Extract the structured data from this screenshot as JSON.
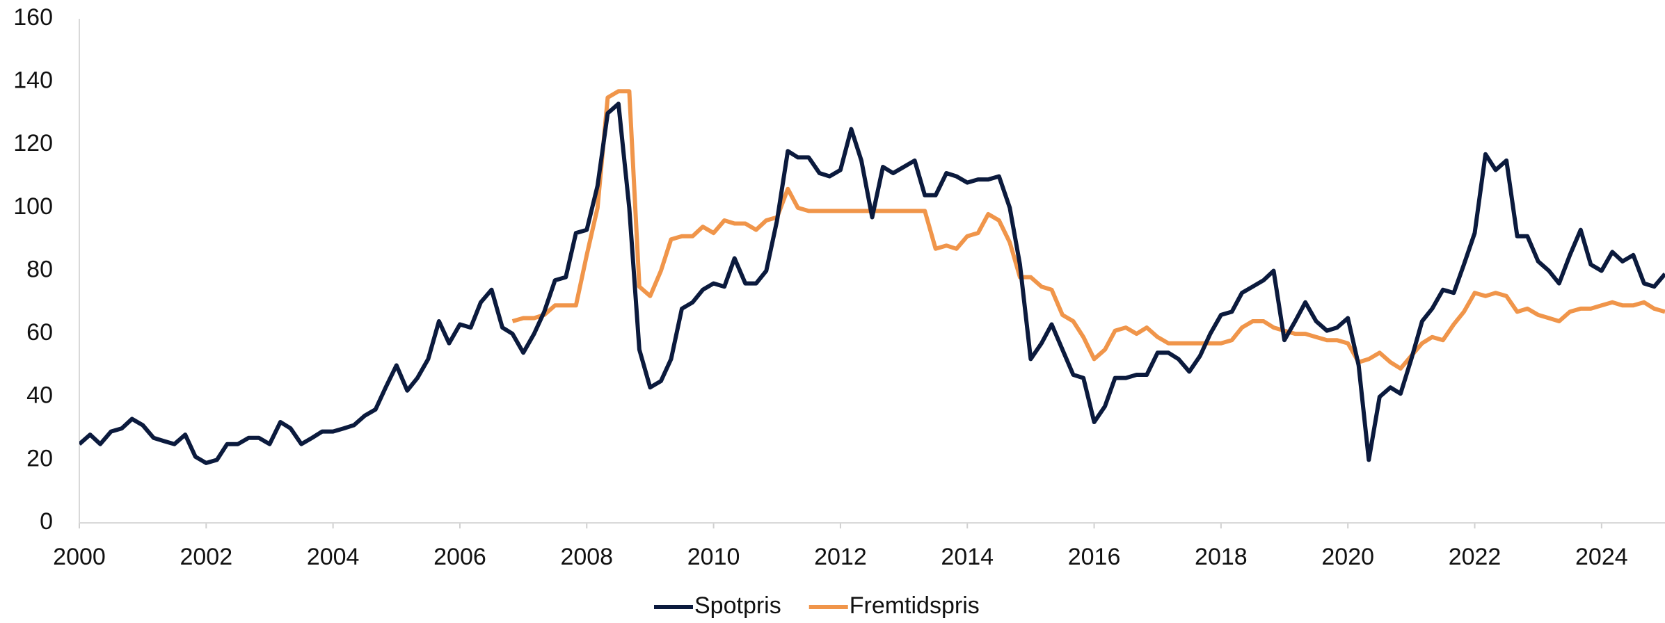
{
  "chart_data": {
    "type": "line",
    "xlim": [
      2000,
      2025
    ],
    "xticks": [
      2000,
      2002,
      2004,
      2006,
      2008,
      2010,
      2012,
      2014,
      2016,
      2018,
      2020,
      2022,
      2024
    ],
    "ylim": [
      0,
      160
    ],
    "yticks": [
      0,
      20,
      40,
      60,
      80,
      100,
      120,
      140,
      160
    ],
    "grid": false,
    "legend": "bottom",
    "series": [
      {
        "name": "Spotpris",
        "color": "#0b1a3d",
        "x": [
          2000,
          2000.17,
          2000.33,
          2000.5,
          2000.67,
          2000.83,
          2001,
          2001.17,
          2001.33,
          2001.5,
          2001.67,
          2001.83,
          2002,
          2002.17,
          2002.33,
          2002.5,
          2002.67,
          2002.83,
          2003,
          2003.17,
          2003.33,
          2003.5,
          2003.67,
          2003.83,
          2004,
          2004.17,
          2004.33,
          2004.5,
          2004.67,
          2004.83,
          2005,
          2005.17,
          2005.33,
          2005.5,
          2005.67,
          2005.83,
          2006,
          2006.17,
          2006.33,
          2006.5,
          2006.67,
          2006.83,
          2007,
          2007.17,
          2007.33,
          2007.5,
          2007.67,
          2007.83,
          2008,
          2008.17,
          2008.33,
          2008.5,
          2008.67,
          2008.83,
          2009,
          2009.17,
          2009.33,
          2009.5,
          2009.67,
          2009.83,
          2010,
          2010.17,
          2010.33,
          2010.5,
          2010.67,
          2010.83,
          2011,
          2011.17,
          2011.33,
          2011.5,
          2011.67,
          2011.83,
          2012,
          2012.17,
          2012.33,
          2012.5,
          2012.67,
          2012.83,
          2013,
          2013.17,
          2013.33,
          2013.5,
          2013.67,
          2013.83,
          2014,
          2014.17,
          2014.33,
          2014.5,
          2014.67,
          2014.83,
          2015,
          2015.17,
          2015.33,
          2015.5,
          2015.67,
          2015.83,
          2016,
          2016.17,
          2016.33,
          2016.5,
          2016.67,
          2016.83,
          2017,
          2017.17,
          2017.33,
          2017.5,
          2017.67,
          2017.83,
          2018,
          2018.17,
          2018.33,
          2018.5,
          2018.67,
          2018.83,
          2019,
          2019.17,
          2019.33,
          2019.5,
          2019.67,
          2019.83,
          2020,
          2020.17,
          2020.33,
          2020.5,
          2020.67,
          2020.83,
          2021,
          2021.17,
          2021.33,
          2021.5,
          2021.67,
          2021.83,
          2022,
          2022.17,
          2022.33,
          2022.5,
          2022.67,
          2022.83,
          2023,
          2023.17,
          2023.33,
          2023.5,
          2023.67,
          2023.83,
          2024,
          2024.17,
          2024.33,
          2024.5,
          2024.67,
          2024.83,
          2025
        ],
        "values": [
          25,
          28,
          25,
          29,
          30,
          33,
          31,
          27,
          26,
          25,
          28,
          21,
          19,
          20,
          25,
          25,
          27,
          27,
          25,
          32,
          30,
          25,
          27,
          29,
          29,
          30,
          31,
          34,
          36,
          43,
          50,
          42,
          46,
          52,
          64,
          57,
          63,
          62,
          70,
          74,
          62,
          60,
          54,
          60,
          67,
          77,
          78,
          92,
          93,
          107,
          130,
          133,
          100,
          55,
          43,
          45,
          52,
          68,
          70,
          74,
          76,
          75,
          84,
          76,
          76,
          80,
          96,
          118,
          116,
          116,
          111,
          110,
          112,
          125,
          115,
          97,
          113,
          111,
          113,
          115,
          104,
          104,
          111,
          110,
          108,
          109,
          109,
          110,
          100,
          82,
          52,
          57,
          63,
          55,
          47,
          46,
          32,
          37,
          46,
          46,
          47,
          47,
          54,
          54,
          52,
          48,
          53,
          60,
          66,
          67,
          73,
          75,
          77,
          80,
          58,
          64,
          70,
          64,
          61,
          62,
          65,
          50,
          20,
          40,
          43,
          41,
          52,
          64,
          68,
          74,
          73,
          82,
          92,
          117,
          112,
          115,
          91,
          91,
          83,
          80,
          76,
          85,
          93,
          82,
          80,
          86,
          83,
          85,
          76,
          75,
          79
        ]
      },
      {
        "name": "Fremtidspris",
        "color": "#f0954a",
        "x": [
          2006.83,
          2007,
          2007.17,
          2007.33,
          2007.5,
          2007.67,
          2007.83,
          2008,
          2008.17,
          2008.33,
          2008.5,
          2008.67,
          2008.83,
          2009,
          2009.17,
          2009.33,
          2009.5,
          2009.67,
          2009.83,
          2010,
          2010.17,
          2010.33,
          2010.5,
          2010.67,
          2010.83,
          2011,
          2011.17,
          2011.33,
          2011.5,
          2011.67,
          2011.83,
          2012,
          2012.17,
          2012.33,
          2012.5,
          2012.67,
          2012.83,
          2013,
          2013.17,
          2013.33,
          2013.5,
          2013.67,
          2013.83,
          2014,
          2014.17,
          2014.33,
          2014.5,
          2014.67,
          2014.83,
          2015,
          2015.17,
          2015.33,
          2015.5,
          2015.67,
          2015.83,
          2016,
          2016.17,
          2016.33,
          2016.5,
          2016.67,
          2016.83,
          2017,
          2017.17,
          2017.33,
          2017.5,
          2017.67,
          2017.83,
          2018,
          2018.17,
          2018.33,
          2018.5,
          2018.67,
          2018.83,
          2019,
          2019.17,
          2019.33,
          2019.5,
          2019.67,
          2019.83,
          2020,
          2020.17,
          2020.33,
          2020.5,
          2020.67,
          2020.83,
          2021,
          2021.17,
          2021.33,
          2021.5,
          2021.67,
          2021.83,
          2022,
          2022.17,
          2022.33,
          2022.5,
          2022.67,
          2022.83,
          2023,
          2023.17,
          2023.33,
          2023.5,
          2023.67,
          2023.83,
          2024,
          2024.17,
          2024.33,
          2024.5,
          2024.67,
          2024.83,
          2025
        ],
        "values": [
          64,
          65,
          65,
          66,
          69,
          69,
          69,
          85,
          100,
          135,
          137,
          137,
          75,
          72,
          80,
          90,
          91,
          91,
          94,
          92,
          96,
          95,
          95,
          93,
          96,
          97,
          106,
          100,
          99,
          99,
          99,
          99,
          99,
          99,
          99,
          99,
          99,
          99,
          99,
          99,
          87,
          88,
          87,
          91,
          92,
          98,
          96,
          89,
          78,
          78,
          75,
          74,
          66,
          64,
          59,
          52,
          55,
          61,
          62,
          60,
          62,
          59,
          57,
          57,
          57,
          57,
          57,
          57,
          58,
          62,
          64,
          64,
          62,
          61,
          60,
          60,
          59,
          58,
          58,
          57,
          51,
          52,
          54,
          51,
          49,
          53,
          57,
          59,
          58,
          63,
          67,
          73,
          72,
          73,
          72,
          67,
          68,
          66,
          65,
          64,
          67,
          68,
          68,
          69,
          70,
          69,
          69,
          70,
          68,
          67
        ]
      }
    ]
  }
}
